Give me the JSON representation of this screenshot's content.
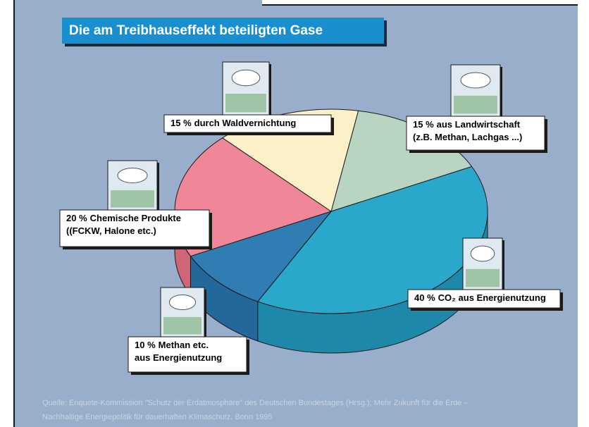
{
  "chart_data": {
    "type": "pie",
    "title": "Die am Treibhauseffekt beteiligten Gase",
    "categories": [
      [
        "aus Landwirtschaft",
        "(z.B. Methan, Lachgas ...)"
      ],
      [
        "CO₂ aus Energienutzung"
      ],
      [
        "Methan etc.",
        "aus Energienutzung"
      ],
      [
        "Chemische Produkte",
        "((FCKW, Halone etc.)"
      ],
      [
        "durch Waldvernichtung"
      ]
    ],
    "values": [
      15,
      40,
      10,
      20,
      15
    ],
    "value_labels": [
      "15 %",
      "40 %",
      "10 %",
      "20 %",
      "15 %"
    ],
    "colors": [
      "#b9d5c2",
      "#2aa8cb",
      "#2f7db3",
      "#ef8798",
      "#fbf0c8"
    ],
    "side_colors": [
      "#93b39d",
      "#1e88aa",
      "#24679a",
      "#cf6577",
      "#d8cca2"
    ],
    "source": [
      "Quelle: Enquete-Kommission \"Schutz der Erdatmosphäre\" des Deutschen Bundestages (Hrsg.); Mehr Zukunft für die Erde –",
      "Nachhaltige Energiepolitik für dauerhaften Klimaschutz, Bonn 1995"
    ]
  }
}
